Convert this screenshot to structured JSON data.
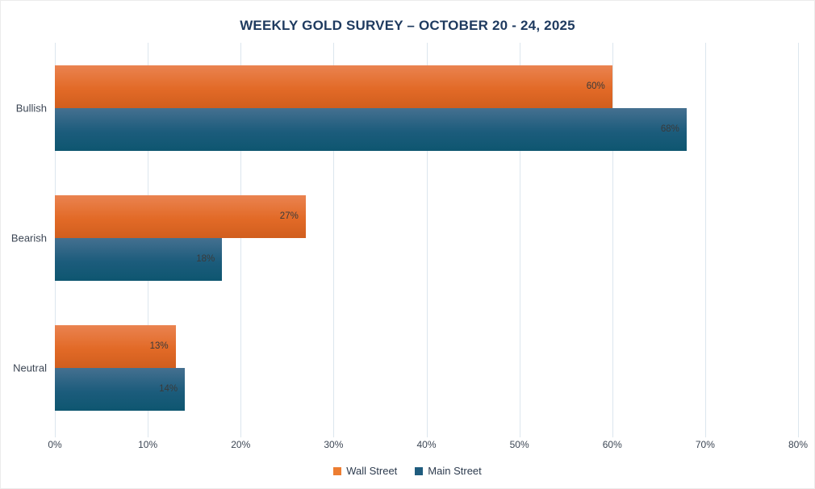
{
  "chart_data": {
    "type": "bar",
    "orientation": "horizontal",
    "title": "WEEKLY GOLD SURVEY – OCTOBER 20 - 24, 2025",
    "categories": [
      "Bullish",
      "Bearish",
      "Neutral"
    ],
    "series": [
      {
        "name": "Wall Street",
        "values": [
          60,
          27,
          13
        ],
        "color": "#ED7D31",
        "gradient": [
          "#EA8350",
          "#E26A27",
          "#D15E1E"
        ]
      },
      {
        "name": "Main Street",
        "values": [
          68,
          18,
          14
        ],
        "color": "#1F5C7E",
        "gradient": [
          "#457090",
          "#1C5C7C",
          "#0E5670"
        ]
      }
    ],
    "value_suffix": "%",
    "xlim": [
      0,
      80
    ],
    "x_tick_values": [
      0,
      10,
      20,
      30,
      40,
      50,
      60,
      70,
      80
    ],
    "x_tick_labels": [
      "0%",
      "10%",
      "20%",
      "30%",
      "40%",
      "50%",
      "60%",
      "70%",
      "80%"
    ],
    "grid": true,
    "data_labels": "inside-end",
    "legend_position": "bottom"
  },
  "colors": {
    "title": "#1E3A5F",
    "axis_labels": "#3C4654",
    "data_labels": "#3A3A3A",
    "gridline": "#DCE6EE",
    "background": "#FFFFFF",
    "border": "#ECECEC",
    "legend_text": "#2D3B4E"
  }
}
